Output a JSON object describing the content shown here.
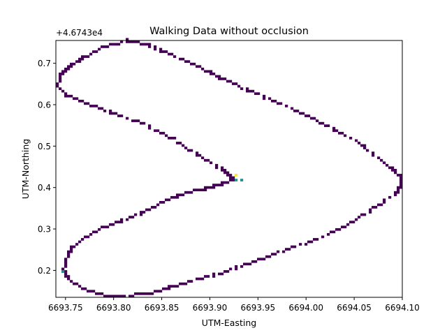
{
  "chart_data": {
    "type": "heatmap",
    "title": "Walking Data without occlusion",
    "xlabel": "UTM-Easting",
    "ylabel": "UTM-Northing",
    "y_offset_label": "+4.6743e4",
    "xlim": [
      6693.74,
      6694.1
    ],
    "ylim": [
      0.135,
      0.755
    ],
    "x_ticks": [
      6693.75,
      6693.8,
      6693.85,
      6693.9,
      6693.95,
      6694.0,
      6694.05,
      6694.1
    ],
    "x_tick_labels": [
      "6693.75",
      "6693.80",
      "6693.85",
      "6693.90",
      "6693.95",
      "6694.00",
      "6694.05",
      "6694.10"
    ],
    "y_ticks": [
      0.2,
      0.3,
      0.4,
      0.5,
      0.6,
      0.7
    ],
    "y_tick_labels": [
      "0.2",
      "0.3",
      "0.4",
      "0.5",
      "0.6",
      "0.7"
    ],
    "grid": false,
    "colormap": "viridis",
    "colors": {
      "low": "#440154",
      "mid": "#21918c",
      "high": "#fde725"
    },
    "path": [
      [
        6693.925,
        0.42
      ],
      [
        6693.915,
        0.41
      ],
      [
        6693.9,
        0.4
      ],
      [
        6693.88,
        0.39
      ],
      [
        6693.86,
        0.375
      ],
      [
        6693.84,
        0.35
      ],
      [
        6693.815,
        0.325
      ],
      [
        6693.79,
        0.305
      ],
      [
        6693.77,
        0.28
      ],
      [
        6693.755,
        0.25
      ],
      [
        6693.75,
        0.22
      ],
      [
        6693.748,
        0.2
      ],
      [
        6693.755,
        0.175
      ],
      [
        6693.77,
        0.155
      ],
      [
        6693.79,
        0.14
      ],
      [
        6693.81,
        0.138
      ],
      [
        6693.84,
        0.145
      ],
      [
        6693.86,
        0.16
      ],
      [
        6693.89,
        0.18
      ],
      [
        6693.92,
        0.2
      ],
      [
        6693.95,
        0.225
      ],
      [
        6693.98,
        0.25
      ],
      [
        6694.01,
        0.275
      ],
      [
        6694.04,
        0.305
      ],
      [
        6694.07,
        0.35
      ],
      [
        6694.095,
        0.39
      ],
      [
        6694.1,
        0.42
      ],
      [
        6694.09,
        0.445
      ],
      [
        6694.06,
        0.5
      ],
      [
        6694.03,
        0.54
      ],
      [
        6694.0,
        0.575
      ],
      [
        6693.97,
        0.605
      ],
      [
        6693.94,
        0.635
      ],
      [
        6693.91,
        0.665
      ],
      [
        6693.89,
        0.69
      ],
      [
        6693.86,
        0.72
      ],
      [
        6693.835,
        0.745
      ],
      [
        6693.815,
        0.755
      ],
      [
        6693.79,
        0.74
      ],
      [
        6693.77,
        0.715
      ],
      [
        6693.755,
        0.695
      ],
      [
        6693.745,
        0.67
      ],
      [
        6693.742,
        0.645
      ],
      [
        6693.75,
        0.625
      ],
      [
        6693.77,
        0.605
      ],
      [
        6693.8,
        0.58
      ],
      [
        6693.83,
        0.555
      ],
      [
        6693.86,
        0.52
      ],
      [
        6693.89,
        0.475
      ],
      [
        6693.915,
        0.44
      ],
      [
        6693.925,
        0.42
      ]
    ],
    "hotspots": [
      {
        "x": 6693.928,
        "y": 0.42,
        "level": "mid"
      },
      {
        "x": 6693.932,
        "y": 0.42,
        "level": "mid"
      },
      {
        "x": 6693.926,
        "y": 0.432,
        "level": "high"
      },
      {
        "x": 6693.748,
        "y": 0.2,
        "level": "mid"
      }
    ]
  }
}
